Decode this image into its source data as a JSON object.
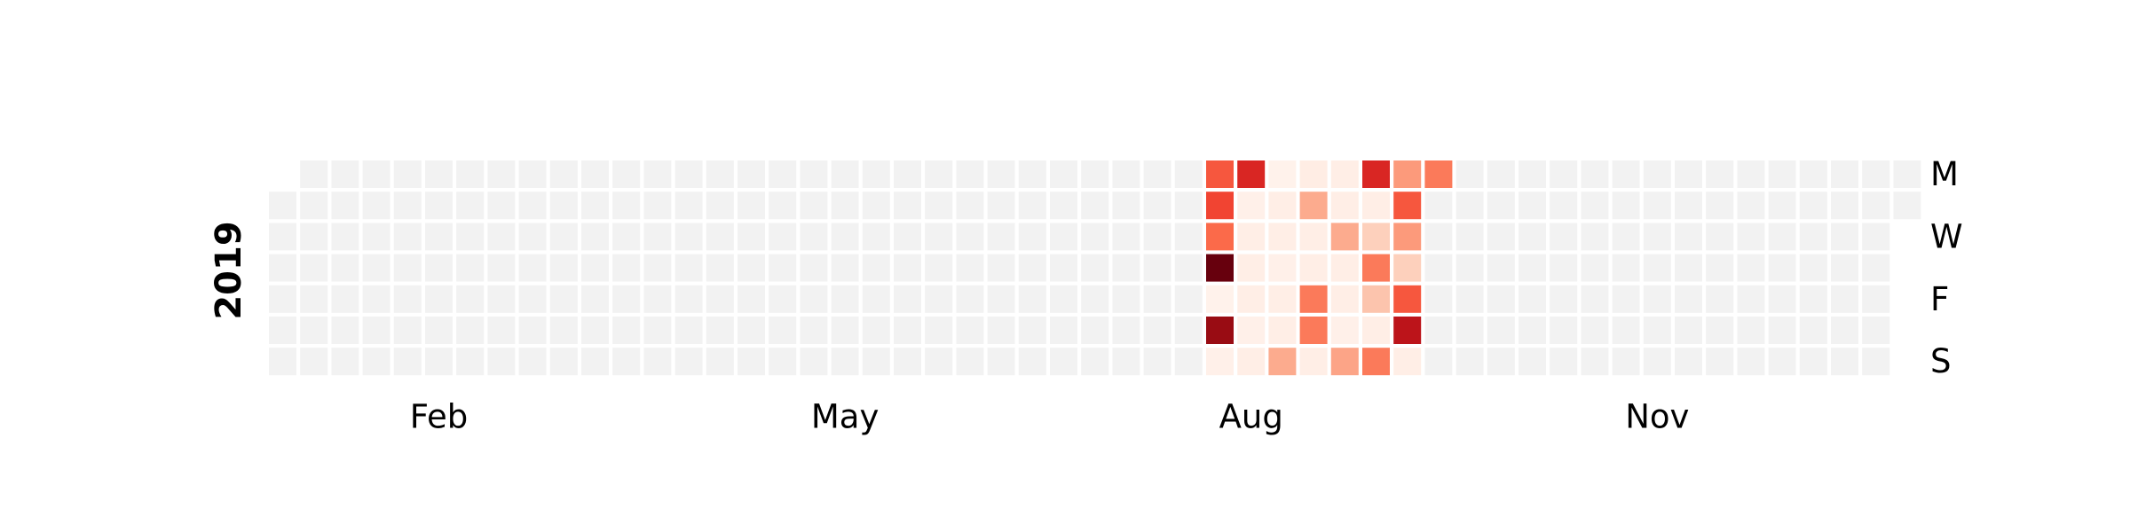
{
  "chart_data": {
    "type": "heatmap",
    "title": "",
    "year": "2019",
    "start_weekday_of_jan1": "Tue",
    "day_labels": [
      {
        "row": 0,
        "text": "M"
      },
      {
        "row": 2,
        "text": "W"
      },
      {
        "row": 4,
        "text": "F"
      },
      {
        "row": 6,
        "text": "S"
      }
    ],
    "month_labels": [
      {
        "week": 5,
        "text": "Feb"
      },
      {
        "week": 18,
        "text": "May"
      },
      {
        "week": 31,
        "text": "Aug"
      },
      {
        "week": 44,
        "text": "Nov"
      }
    ],
    "colormap": "Reds",
    "vmin": 0,
    "vmax": 1,
    "empty_color": "#f2f2f2",
    "active_weeks": [
      {
        "week": 30,
        "values": [
          0.55,
          0.6,
          0.5,
          1.0,
          0.02,
          0.9,
          0.03
        ]
      },
      {
        "week": 31,
        "values": [
          0.7,
          0.03,
          0.04,
          0.04,
          0.04,
          0.03,
          0.04
        ]
      },
      {
        "week": 32,
        "values": [
          0.02,
          0.04,
          0.04,
          0.03,
          0.04,
          0.04,
          0.3
        ]
      },
      {
        "week": 33,
        "values": [
          0.05,
          0.3,
          0.04,
          0.04,
          0.45,
          0.45,
          0.04
        ]
      },
      {
        "week": 34,
        "values": [
          0.04,
          0.04,
          0.3,
          0.04,
          0.04,
          0.03,
          0.32
        ]
      },
      {
        "week": 35,
        "values": [
          0.7,
          0.04,
          0.18,
          0.45,
          0.22,
          0.04,
          0.45
        ]
      },
      {
        "week": 36,
        "values": [
          0.35,
          0.55,
          0.35,
          0.18,
          0.55,
          0.8,
          0.04
        ]
      },
      {
        "week": 37,
        "values": [
          0.45,
          null,
          null,
          null,
          null,
          null,
          null
        ]
      }
    ]
  }
}
